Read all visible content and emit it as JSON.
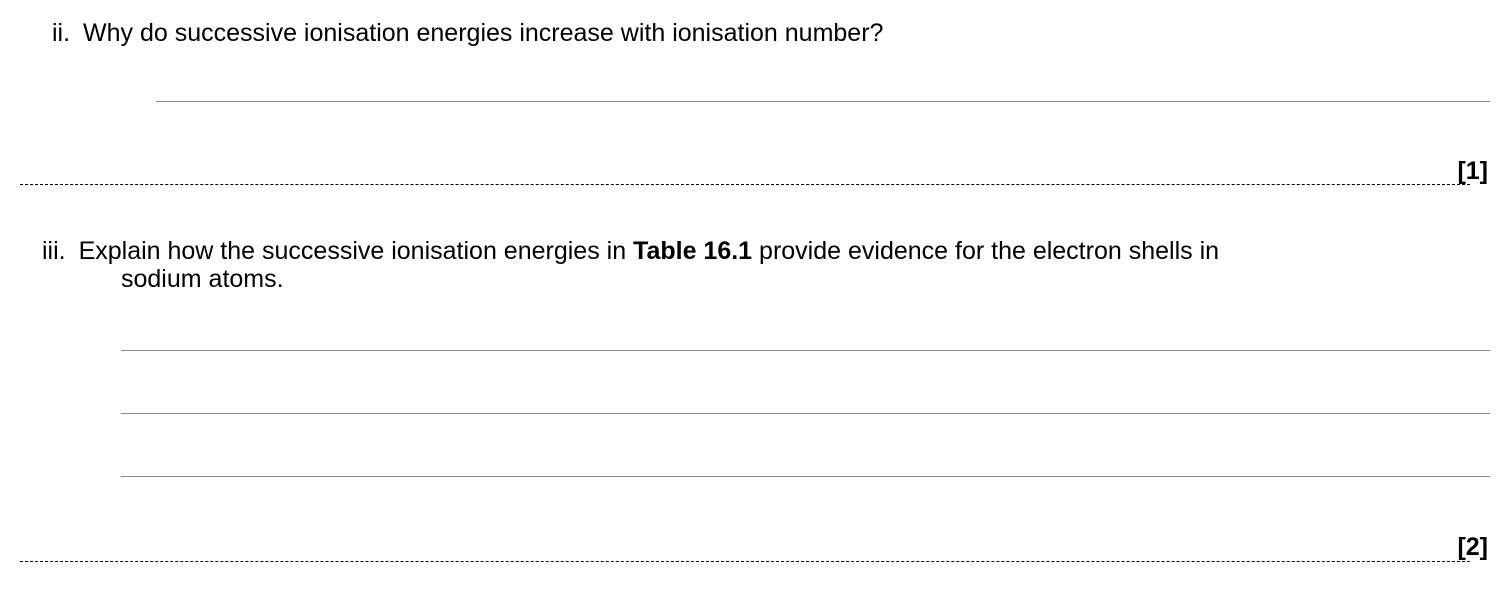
{
  "questions": [
    {
      "number": "ii.",
      "text": "Why do successive ionisation energies increase with ionisation number?",
      "marks": "[1]"
    },
    {
      "number": "iii.",
      "text_before": "Explain how the successive ionisation energies in ",
      "text_bold": "Table 16.1",
      "text_after": " provide evidence for the electron shells in",
      "text_line2": "sodium atoms.",
      "marks": "[2]"
    }
  ]
}
